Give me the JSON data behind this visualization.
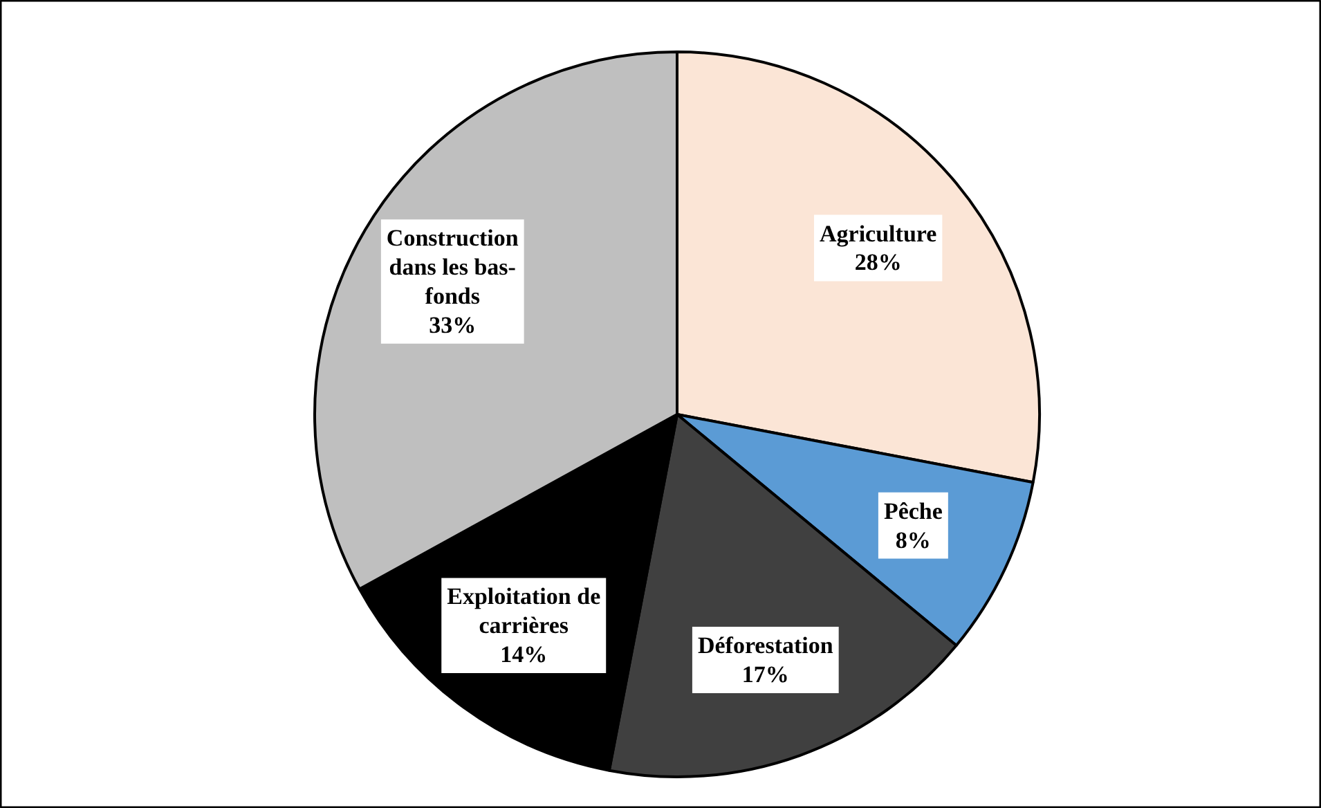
{
  "chart_data": {
    "type": "pie",
    "categories": [
      "Agriculture",
      "Pêche",
      "Déforestation",
      "Exploitation de carrières",
      "Construction dans les bas-fonds"
    ],
    "values": [
      28,
      8,
      17,
      14,
      33
    ],
    "colors": [
      "#fbe5d6",
      "#5b9bd5",
      "#404040",
      "#000000",
      "#bfbfbf"
    ],
    "value_labels": [
      "28%",
      "8%",
      "17%",
      "14%",
      "33%"
    ]
  }
}
